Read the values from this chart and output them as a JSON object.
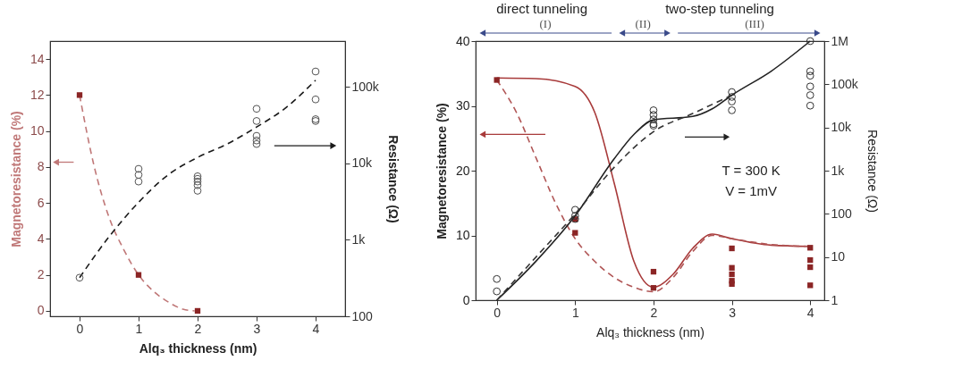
{
  "chart_data": [
    {
      "type": "scatter",
      "xlabel": "Alq₃ thickness (nm)",
      "ylabel": "Magnetoresistance (%)",
      "y2label": "Resistance (Ω)",
      "xlim": [
        -0.5,
        4.5
      ],
      "xticks": [
        0,
        1,
        2,
        3,
        4
      ],
      "ylim": [
        -0.3,
        15
      ],
      "yticks": [
        0,
        2,
        4,
        6,
        8,
        10,
        12,
        14
      ],
      "y2lim": [
        100,
        400000
      ],
      "y2ticks": [
        100,
        {
          "value": 1000,
          "label": "1k"
        },
        {
          "value": 10000,
          "label": "10k"
        },
        {
          "value": 100000,
          "label": "100k"
        }
      ],
      "log": "y2",
      "grid": false,
      "legend": false,
      "series": [
        {
          "type": "line",
          "line_style": "dashed",
          "color": "#c07878",
          "x": [
            0,
            0.25,
            0.5,
            0.75,
            1,
            1.25,
            1.5,
            1.75,
            1.95
          ],
          "values": [
            12,
            8,
            5.2,
            3.4,
            2,
            1.1,
            0.5,
            0.1,
            0
          ]
        },
        {
          "marker": "square",
          "color": "#8b2525",
          "x": [
            0,
            1,
            2
          ],
          "values": [
            12,
            2,
            0
          ]
        },
        {
          "type": "line",
          "axis": "y2",
          "line_style": "dashed",
          "color": "#1a1a1a",
          "x": [
            0,
            0.5,
            1,
            1.5,
            2,
            2.5,
            3,
            3.5,
            4
          ],
          "values": [
            320,
            1100,
            3100,
            7100,
            12000,
            18000,
            30000,
            54000,
            123000
          ]
        },
        {
          "axis": "y2",
          "marker": "circle",
          "color": "#555555",
          "x": [
            0,
            1,
            1,
            1,
            2,
            2,
            2,
            2,
            2,
            3,
            3,
            3,
            3,
            3,
            4,
            4,
            4,
            4
          ],
          "values": [
            320,
            8500,
            7100,
            5800,
            6800,
            6300,
            5800,
            5200,
            4400,
            52000,
            36000,
            23000,
            20000,
            18000,
            160000,
            69000,
            38000,
            36000
          ]
        }
      ]
    },
    {
      "type": "scatter",
      "xlabel": "Alq₃ thickness (nm)",
      "ylabel": "Magnetoresistance (%)",
      "y2label": "Resistance (Ω)",
      "xlim": [
        -0.27,
        4.18
      ],
      "xticks": [
        0,
        1,
        2,
        3,
        4
      ],
      "ylim": [
        0,
        40
      ],
      "yticks": [
        0,
        10,
        20,
        30,
        40
      ],
      "y2lim": [
        1,
        1000000
      ],
      "y2ticks": [
        1,
        10,
        100,
        {
          "value": 1000,
          "label": "1k"
        },
        {
          "value": 10000,
          "label": "10k"
        },
        {
          "value": 100000,
          "label": "100k"
        },
        {
          "value": 1000000,
          "label": "1M"
        }
      ],
      "log": "y2",
      "grid": false,
      "legend": false,
      "annotations": [
        "direct tunneling",
        "two-step tunneling",
        "(I)",
        "(II)",
        "(III)",
        "T = 300 K",
        "V = 1mV"
      ],
      "series": [
        {
          "type": "line",
          "line_style": "solid",
          "color": "#a83a3a",
          "x": [
            0,
            0.5,
            1,
            1.25,
            1.5,
            1.75,
            2,
            2.25,
            2.5,
            2.75,
            3,
            3.5,
            4
          ],
          "values": [
            34.3,
            34.2,
            33,
            29,
            18,
            6,
            2,
            4,
            8,
            10.2,
            9.5,
            8.5,
            8.3
          ]
        },
        {
          "type": "line",
          "line_style": "dashed",
          "color": "#b05555",
          "x": [
            0,
            0.25,
            0.5,
            0.75,
            1,
            1.25,
            1.5,
            1.75,
            2,
            2.25,
            2.5,
            2.75,
            3,
            3.5,
            4
          ],
          "values": [
            34,
            29,
            22,
            15,
            9.5,
            6,
            3.5,
            2,
            1.3,
            3.5,
            7.5,
            10,
            9.5,
            8.6,
            8.3
          ]
        },
        {
          "marker": "square",
          "color": "#8b2525",
          "x": [
            0,
            1,
            1,
            2,
            2,
            3,
            3,
            3,
            3,
            3,
            4,
            4,
            4,
            4
          ],
          "values": [
            34,
            12.5,
            10.4,
            4.4,
            1.9,
            8,
            5,
            4,
            3,
            2.5,
            8.1,
            6.2,
            5.1,
            2.3
          ]
        },
        {
          "type": "line",
          "axis": "y2",
          "line_style": "solid",
          "color": "#222222",
          "x": [
            0,
            0.5,
            1,
            1.5,
            1.75,
            2,
            2.5,
            2.75,
            3,
            3.5,
            4
          ],
          "values": [
            1,
            8,
            90,
            1900,
            6900,
            15000,
            18000,
            27000,
            56000,
            200000,
            1000000
          ]
        },
        {
          "type": "line",
          "axis": "y2",
          "line_style": "dashed",
          "color": "#333333",
          "x": [
            0,
            0.5,
            1,
            1.5,
            2,
            2.5,
            3
          ],
          "values": [
            1,
            10,
            100,
            1200,
            8000,
            21000,
            56000
          ]
        },
        {
          "axis": "y2",
          "marker": "circle",
          "color": "#333333",
          "x": [
            0,
            0,
            1,
            1,
            1,
            2,
            2,
            2,
            2,
            2,
            3,
            3,
            3,
            3,
            4,
            4,
            4,
            4,
            4,
            4
          ],
          "values": [
            3.1,
            1.6,
            124,
            90,
            76,
            25000,
            19500,
            15400,
            12000,
            11000,
            66000,
            51000,
            40000,
            25000,
            1000000,
            200000,
            158000,
            89000,
            56000,
            32000
          ]
        }
      ]
    }
  ]
}
